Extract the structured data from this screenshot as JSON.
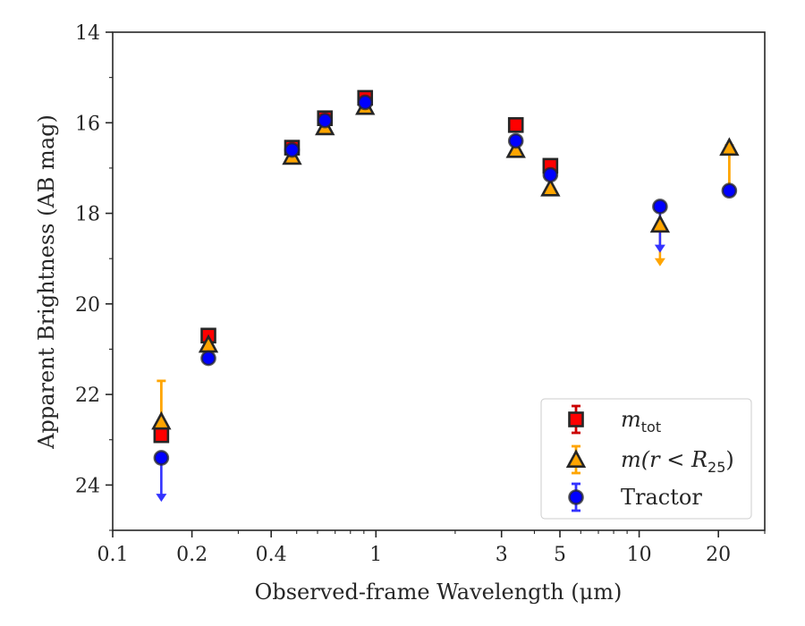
{
  "chart_data": {
    "type": "scatter",
    "title": "",
    "xlabel": "Observed-frame Wavelength (μm)",
    "ylabel": "Apparent Brightness (AB mag)",
    "xscale": "log",
    "xlim": [
      0.1,
      30
    ],
    "ylim": [
      25,
      14
    ],
    "y_inverted": true,
    "grid": false,
    "legend_position": "lower-right",
    "xticks": [
      {
        "value": 0.1,
        "label": "0.1"
      },
      {
        "value": 0.2,
        "label": "0.2"
      },
      {
        "value": 0.4,
        "label": "0.4"
      },
      {
        "value": 1,
        "label": "1"
      },
      {
        "value": 3,
        "label": "3"
      },
      {
        "value": 5,
        "label": "5"
      },
      {
        "value": 10,
        "label": "10"
      },
      {
        "value": 20,
        "label": "20"
      }
    ],
    "yticks": [
      {
        "value": 14,
        "label": "14"
      },
      {
        "value": 16,
        "label": "16"
      },
      {
        "value": 18,
        "label": "18"
      },
      {
        "value": 20,
        "label": "20"
      },
      {
        "value": 22,
        "label": "22"
      },
      {
        "value": 24,
        "label": "24"
      }
    ],
    "series": [
      {
        "name_main": "m",
        "name_sub": "tot",
        "marker": "square",
        "color": "#ff0000",
        "errcolor": "#cc0000",
        "points": [
          {
            "x": 0.153,
            "y": 22.9
          },
          {
            "x": 0.231,
            "y": 20.7
          },
          {
            "x": 0.48,
            "y": 16.55
          },
          {
            "x": 0.64,
            "y": 15.9
          },
          {
            "x": 0.91,
            "y": 15.45
          },
          {
            "x": 3.4,
            "y": 16.05
          },
          {
            "x": 4.6,
            "y": 16.95
          }
        ]
      },
      {
        "name_main": "m(r < R",
        "name_sub": "25",
        "name_tail": ")",
        "marker": "triangle",
        "color": "#ffa500",
        "errcolor": "#ffa500",
        "points": [
          {
            "x": 0.153,
            "y": 22.6,
            "err_low": 21.7,
            "err_high": 23.0
          },
          {
            "x": 0.231,
            "y": 20.9
          },
          {
            "x": 0.48,
            "y": 16.75
          },
          {
            "x": 0.64,
            "y": 16.1
          },
          {
            "x": 0.91,
            "y": 15.65
          },
          {
            "x": 3.4,
            "y": 16.6
          },
          {
            "x": 4.6,
            "y": 17.45
          },
          {
            "x": 12.0,
            "y": 18.25,
            "upper_limit_to": 19.15
          },
          {
            "x": 22.0,
            "y": 16.55,
            "err_low": 16.5,
            "err_high": 17.4
          }
        ]
      },
      {
        "name": "Tractor",
        "marker": "circle",
        "color": "#0000ff",
        "errcolor": "#3333ff",
        "points": [
          {
            "x": 0.153,
            "y": 23.4,
            "upper_limit_to": 24.35
          },
          {
            "x": 0.231,
            "y": 21.2
          },
          {
            "x": 0.48,
            "y": 16.6
          },
          {
            "x": 0.64,
            "y": 15.95
          },
          {
            "x": 0.91,
            "y": 15.55
          },
          {
            "x": 3.4,
            "y": 16.4
          },
          {
            "x": 4.6,
            "y": 17.15
          },
          {
            "x": 12.0,
            "y": 17.85,
            "upper_limit_to": 18.85
          },
          {
            "x": 22.0,
            "y": 17.5
          }
        ]
      }
    ]
  }
}
